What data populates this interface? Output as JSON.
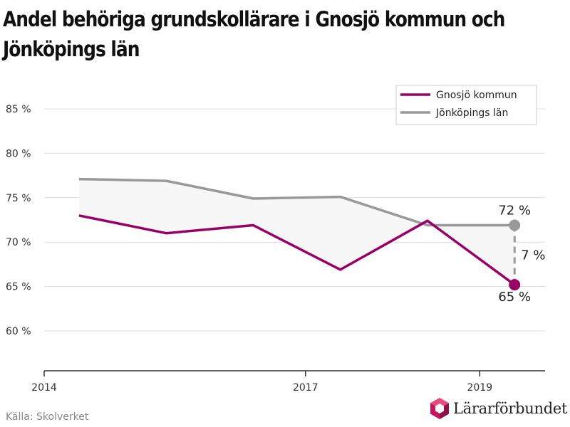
{
  "chart_data": {
    "type": "line",
    "title": "Andel behöriga grundskollärare i Gnosjö kommun och Jönköpings län",
    "xlabel": "",
    "ylabel": "",
    "x": [
      2014.4,
      2015.4,
      2016.4,
      2017.4,
      2018.4,
      2019.4
    ],
    "x_ticks": [
      2014,
      2017,
      2019
    ],
    "xlim": [
      2014,
      2019.75
    ],
    "y_ticks": [
      60,
      65,
      70,
      75,
      80,
      85
    ],
    "y_tick_suffix": " %",
    "ylim": [
      55,
      88
    ],
    "grid": true,
    "legend_position": "top-right",
    "series": [
      {
        "name": "Gnosjö kommun",
        "color": "#990066",
        "values": [
          73.0,
          71.0,
          71.9,
          66.9,
          72.4,
          65.2
        ]
      },
      {
        "name": "Jönköpings län",
        "color": "#999999",
        "values": [
          77.1,
          76.9,
          74.9,
          75.1,
          71.9,
          71.9
        ]
      }
    ],
    "annotations": {
      "gnosjo_end": "65 %",
      "lan_end": "72 %",
      "gap": "7 %"
    }
  },
  "source": "Källa: Skolverket",
  "logo_text": "Lärarförbundet",
  "colors": {
    "gnosjo": "#990066",
    "lan": "#999999",
    "fill": "#f7f7f7",
    "grid": "#dddddd"
  }
}
